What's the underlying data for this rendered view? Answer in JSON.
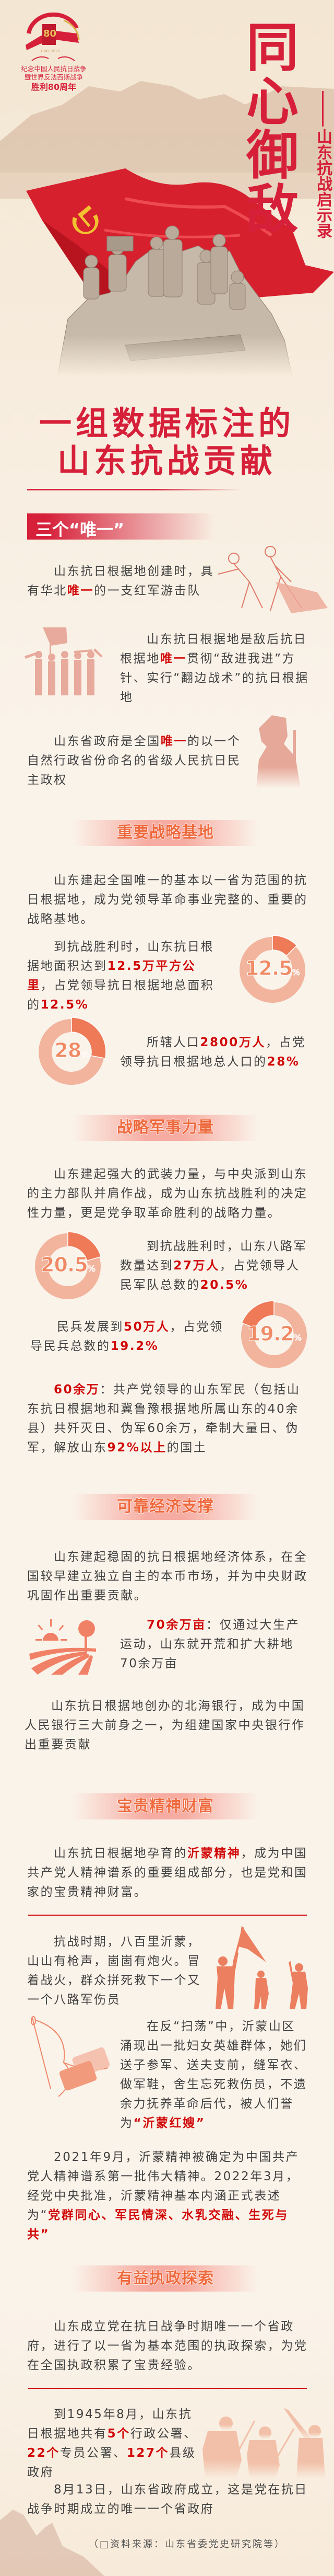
{
  "hero": {
    "logo_number": "80",
    "logo_years": "1945-2025",
    "logo_lines": [
      "纪念中国人民抗日战争",
      "暨世界反法西斯战争",
      "胜利80周年"
    ],
    "title_chars": [
      "同",
      "心",
      "御",
      "敌"
    ],
    "subtitle": "山东抗战启示录"
  },
  "main_title": {
    "line1": "一组数据标注的",
    "line2": "山东抗战贡献"
  },
  "sections": {
    "s1": "三个“唯一”",
    "s2": "重要战略基地",
    "s3": "战略军事力量",
    "s4": "可靠经济支撑",
    "s5": "宝贵精神财富",
    "s6": "有益执政探索"
  },
  "paras": {
    "s1_1": [
      {
        "t": "山东抗日根据地创建时，具有华北"
      },
      {
        "t": "唯一",
        "hl": true
      },
      {
        "t": "的一支红军游击队"
      }
    ],
    "s1_2": [
      {
        "t": "山东抗日根据地是敌后抗日根据地"
      },
      {
        "t": "唯一",
        "hl": true
      },
      {
        "t": "贯彻“敌进我进”方针、实行“翻边战术”的抗日根据地"
      }
    ],
    "s1_3": [
      {
        "t": "山东省政府是全国"
      },
      {
        "t": "唯一",
        "hl": true
      },
      {
        "t": "的以一个自然行政省份命名的省级人民抗日民主政权"
      }
    ],
    "s2_intro": [
      {
        "t": "山东建起全国唯一的基本以一省为范围的抗日根据地，成为党领导革命事业完整的、重要的战略基地。"
      }
    ],
    "s2_area": [
      {
        "t": "到抗战胜利时，山东抗日根据地面积达到"
      },
      {
        "t": "12.5万平方公里",
        "hl": true
      },
      {
        "t": "，占党领导抗日根据地总面积的"
      },
      {
        "t": "12.5%",
        "hl": true
      }
    ],
    "s2_pop": [
      {
        "t": "所辖人口"
      },
      {
        "t": "2800万人",
        "hl": true
      },
      {
        "t": "，占党领导抗日根据地总人口的"
      },
      {
        "t": "28%",
        "hl": true
      }
    ],
    "s3_intro": [
      {
        "t": "山东建起强大的武装力量，与中央派到山东的主力部队并肩作战，成为山东抗战胜利的决定性力量，更是党争取革命胜利的战略力量。"
      }
    ],
    "s3_army": [
      {
        "t": "到抗战胜利时，山东八路军数量达到"
      },
      {
        "t": "27万人",
        "hl": true
      },
      {
        "t": "，占党领导人民军队总数的"
      },
      {
        "t": "20.5%",
        "hl": true
      }
    ],
    "s3_militia": [
      {
        "t": "民兵发展到"
      },
      {
        "t": "50万人",
        "hl": true
      },
      {
        "t": "，占党领导民兵总数的"
      },
      {
        "t": "19.2%",
        "hl": true
      }
    ],
    "s3_enemy": [
      {
        "t": "60余万",
        "hl": true
      },
      {
        "t": "：共产党领导的山东军民（包括山东抗日根据地和冀鲁豫根据地所属山东的40余县）共歼灭日、伪军60余万，牵制大量日、伪军，解放山东"
      },
      {
        "t": "92%以上",
        "hl": true
      },
      {
        "t": "的国土"
      }
    ],
    "s4_intro": [
      {
        "t": "山东建起稳固的抗日根据地经济体系，在全国较早建立独立自主的本币市场，并为中央财政巩固作出重要贡献。"
      }
    ],
    "s4_land": [
      {
        "t": "70余万亩",
        "hl": true
      },
      {
        "t": "：仅通过大生产运动，山东就开荒和扩大耕地70余万亩"
      }
    ],
    "s4_bank": [
      {
        "t": "山东抗日根据地创办的北海银行，成为中国人民银行三大前身之一，为组建国家中央银行作出重要贡献"
      }
    ],
    "s5_intro": [
      {
        "t": "山东抗日根据地孕育的"
      },
      {
        "t": "沂蒙精神",
        "hl": true
      },
      {
        "t": "，成为中国共产党人精神谱系的重要组成部分，也是党和国家的宝贵精神财富。"
      }
    ],
    "s5_rescue": [
      {
        "t": "抗战时期，八百里沂蒙，山山有枪声，崮崮有炮火。冒着战火，群众拼死救下一个又一个八路军伤员"
      }
    ],
    "s5_women": [
      {
        "t": "在反“扫荡”中，沂蒙山区涌现出一批妇女英雄群体，她们送子参军、送夫支前，缝军衣、做军鞋，舍生忘死救伤员，不遗余力抚养革命后代，被人们誉为"
      },
      {
        "t": "“沂蒙红嫂”",
        "hl": true
      }
    ],
    "s5_2021": [
      {
        "t": "2021年9月，沂蒙精神被确定为中国共产党人精神谱系第一批伟大精神。2022年3月，经党中央批准，沂蒙精神基本内涵正式表述为“"
      },
      {
        "t": "党群同心、军民情深、水乳交融、生死与共”",
        "hl": true
      }
    ],
    "s6_intro": [
      {
        "t": "山东成立党在抗日战争时期唯一一个省政府，进行了以一省为基本范围的执政探索，为党在全国执政积累了宝贵经验。"
      }
    ],
    "s6_admin": [
      {
        "t": "到1945年8月，山东抗日根据地共有"
      },
      {
        "t": "5个",
        "hl": true
      },
      {
        "t": "行政公署、"
      },
      {
        "t": "22个",
        "hl": true
      },
      {
        "t": "专员公署、"
      },
      {
        "t": "127个",
        "hl": true
      },
      {
        "t": "县级政府"
      }
    ],
    "s6_gov": [
      {
        "t": "8月13日，山东省政府成立，这是党在抗日战争时期成立的唯一一个省政府"
      }
    ]
  },
  "donuts": {
    "area": {
      "value": 12.5,
      "label": "12.5",
      "unit": "%"
    },
    "population": {
      "value": 28,
      "label": "28",
      "unit": "%"
    },
    "army": {
      "value": 20.5,
      "label": "20.5",
      "unit": "%"
    },
    "militia": {
      "value": 19.2,
      "label": "19.2",
      "unit": "%"
    }
  },
  "source": "（□资料来源：山东省委党史研究院等）",
  "colors": {
    "title_red": "#d6203a",
    "highlight_red": "#d10a0a",
    "donut_dark": "#ee7a58",
    "donut_light": "#f2b49d",
    "section_text": "#ee6a3e",
    "background": "#f9f1e7"
  }
}
